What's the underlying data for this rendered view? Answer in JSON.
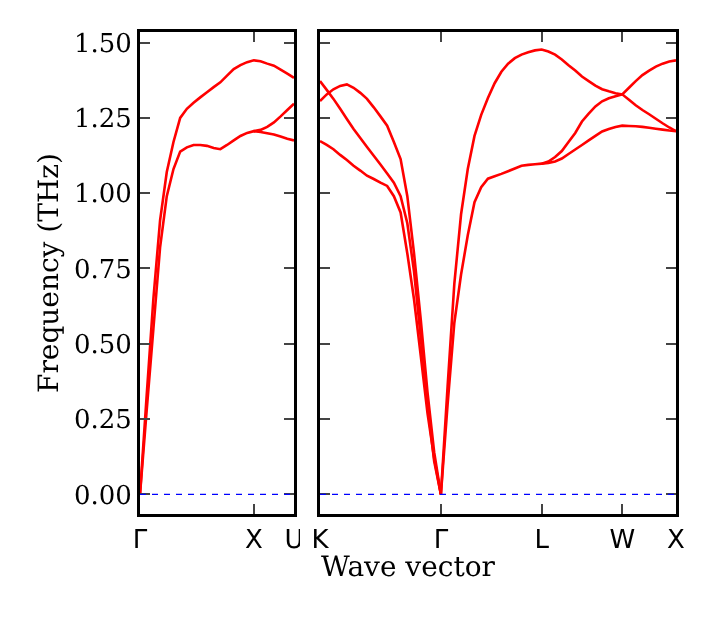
{
  "chart_data": [
    {
      "type": "line",
      "ylabel": "Frequency (THz)",
      "categories": [
        "Γ",
        null,
        null,
        null,
        null,
        null,
        null,
        null,
        null,
        null,
        null,
        null,
        null,
        null,
        null,
        null,
        null,
        "X",
        null,
        null,
        null,
        null,
        null,
        "U"
      ],
      "ylim": [
        -0.065,
        1.535
      ],
      "yticks": [
        {
          "value": 0,
          "label": "0.00"
        },
        {
          "value": 0.25,
          "label": "0.25"
        },
        {
          "value": 0.5,
          "label": "0.50"
        },
        {
          "value": 0.75,
          "label": "0.75"
        },
        {
          "value": 1,
          "label": "1.00"
        },
        {
          "value": 1.25,
          "label": "1.25"
        },
        {
          "value": 1.5,
          "label": "1.50"
        }
      ],
      "ref_lines": [
        {
          "axis": "y",
          "value": 0,
          "color": "#0000ff",
          "line_style": "dotted"
        }
      ],
      "series": [
        {
          "color": "#ff0000",
          "values": [
            0,
            0.28,
            0.55,
            0.82,
            0.99,
            1.08,
            1.138,
            1.152,
            1.16,
            1.16,
            1.157,
            1.15,
            1.146,
            1.16,
            1.175,
            1.19,
            1.2,
            1.206,
            1.203,
            1.199,
            1.195,
            1.188,
            1.181,
            1.175
          ]
        },
        {
          "color": "#ff0000",
          "values": [
            null,
            null,
            null,
            null,
            null,
            null,
            null,
            null,
            null,
            null,
            null,
            null,
            null,
            null,
            null,
            null,
            null,
            1.206,
            1.21,
            1.22,
            1.235,
            1.255,
            1.276,
            1.297
          ]
        },
        {
          "color": "#ff0000",
          "values": [
            0,
            0.33,
            0.65,
            0.91,
            1.07,
            1.17,
            1.25,
            1.28,
            1.3,
            1.318,
            1.335,
            1.352,
            1.368,
            1.39,
            1.412,
            1.425,
            1.435,
            1.441,
            1.438,
            1.43,
            1.423,
            1.41,
            1.397,
            1.383
          ]
        }
      ]
    },
    {
      "type": "line",
      "xlabel": "Wave vector",
      "tick_labels": "x",
      "categories": [
        "K",
        null,
        null,
        null,
        null,
        null,
        null,
        null,
        null,
        null,
        null,
        null,
        null,
        null,
        null,
        null,
        null,
        null,
        "Γ",
        null,
        null,
        null,
        null,
        null,
        null,
        null,
        null,
        null,
        null,
        null,
        null,
        null,
        null,
        "L",
        null,
        null,
        null,
        null,
        null,
        null,
        null,
        null,
        null,
        null,
        null,
        "W",
        null,
        null,
        null,
        null,
        null,
        null,
        null,
        "X"
      ],
      "ylim": [
        -0.065,
        1.535
      ],
      "yticks": [
        0,
        0.25,
        0.5,
        0.75,
        1,
        1.25,
        1.5
      ],
      "ref_lines": [
        {
          "axis": "y",
          "value": 0,
          "color": "#0000ff",
          "line_style": "dotted"
        }
      ],
      "series": [
        {
          "color": "#ff0000",
          "values": [
            1.306,
            1.328,
            1.345,
            1.356,
            1.361,
            1.35,
            1.333,
            1.313,
            1.285,
            1.255,
            1.224,
            1.17,
            1.113,
            0.99,
            0.8,
            0.58,
            0.34,
            0.14,
            0,
            null,
            null,
            null,
            null,
            null,
            null,
            null,
            null,
            null,
            null,
            null,
            null,
            null,
            null,
            null,
            null,
            null,
            null,
            null,
            null,
            null,
            null,
            null,
            null,
            null,
            null,
            null,
            null,
            null,
            null,
            null,
            null,
            null,
            null,
            null
          ]
        },
        {
          "color": "#ff0000",
          "values": [
            1.372,
            1.343,
            1.313,
            1.28,
            1.246,
            1.213,
            1.183,
            1.153,
            1.124,
            1.095,
            1.065,
            1.035,
            0.99,
            0.9,
            0.74,
            0.52,
            0.3,
            0.11,
            0,
            null,
            null,
            null,
            null,
            null,
            null,
            null,
            null,
            null,
            null,
            null,
            null,
            null,
            null,
            null,
            null,
            null,
            null,
            null,
            null,
            null,
            null,
            null,
            null,
            null,
            null,
            null,
            null,
            null,
            null,
            null,
            null,
            null,
            null,
            null
          ]
        },
        {
          "color": "#ff0000",
          "values": [
            1.173,
            1.16,
            1.146,
            1.127,
            1.11,
            1.091,
            1.075,
            1.058,
            1.047,
            1.035,
            1.024,
            0.99,
            0.936,
            0.8,
            0.647,
            0.46,
            0.27,
            0.12,
            0,
            null,
            null,
            null,
            null,
            null,
            null,
            null,
            null,
            null,
            null,
            null,
            null,
            null,
            null,
            null,
            null,
            null,
            null,
            null,
            null,
            null,
            null,
            null,
            null,
            null,
            null,
            null,
            null,
            null,
            null,
            null,
            null,
            null,
            null,
            null
          ]
        },
        {
          "color": "#ff0000",
          "values": [
            null,
            null,
            null,
            null,
            null,
            null,
            null,
            null,
            null,
            null,
            null,
            null,
            null,
            null,
            null,
            null,
            null,
            null,
            0,
            0.36,
            0.7,
            0.93,
            1.08,
            1.19,
            1.26,
            1.316,
            1.365,
            1.403,
            1.43,
            1.448,
            1.46,
            1.468,
            1.474,
            1.477,
            1.47,
            1.46,
            1.444,
            1.425,
            1.407,
            1.387,
            1.372,
            1.357,
            1.345,
            1.338,
            1.332,
            1.328,
            1.31,
            1.292,
            1.276,
            1.262,
            1.247,
            1.232,
            1.218,
            1.206
          ]
        },
        {
          "color": "#ff0000",
          "values": [
            null,
            null,
            null,
            null,
            null,
            null,
            null,
            null,
            null,
            null,
            null,
            null,
            null,
            null,
            null,
            null,
            null,
            null,
            0,
            0.3,
            0.57,
            0.73,
            0.86,
            0.97,
            1.02,
            1.048,
            1.056,
            1.064,
            1.073,
            1.082,
            1.091,
            1.094,
            1.096,
            1.098,
            1.105,
            1.12,
            1.14,
            1.17,
            1.2,
            1.238,
            1.264,
            1.288,
            1.305,
            1.315,
            1.322,
            1.328,
            1.35,
            1.372,
            1.392,
            1.407,
            1.42,
            1.43,
            1.437,
            1.441
          ]
        },
        {
          "color": "#ff0000",
          "values": [
            null,
            null,
            null,
            null,
            null,
            null,
            null,
            null,
            null,
            null,
            null,
            null,
            null,
            null,
            null,
            null,
            null,
            null,
            null,
            null,
            null,
            null,
            null,
            null,
            null,
            null,
            null,
            null,
            null,
            null,
            null,
            null,
            null,
            1.098,
            1.1,
            1.105,
            1.115,
            1.13,
            1.145,
            1.16,
            1.175,
            1.19,
            1.205,
            1.213,
            1.22,
            1.224,
            1.223,
            1.222,
            1.22,
            1.217,
            1.214,
            1.211,
            1.208,
            1.206
          ]
        }
      ]
    }
  ]
}
